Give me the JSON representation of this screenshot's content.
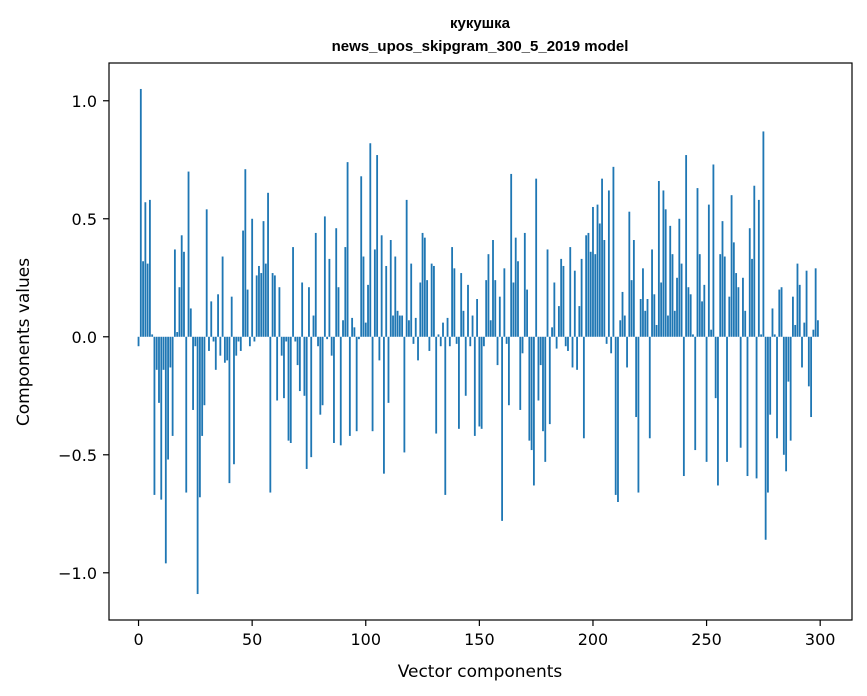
{
  "chart_data": {
    "type": "bar",
    "title": "кукушка",
    "subtitle": "news_upos_skipgram_300_5_2019 model",
    "xlabel": "Vector components",
    "ylabel": "Components values",
    "xlim": [
      -13,
      314
    ],
    "ylim": [
      -1.2,
      1.16
    ],
    "x_ticks": [
      0,
      50,
      100,
      150,
      200,
      250,
      300
    ],
    "x_tick_labels": [
      "0",
      "50",
      "100",
      "150",
      "200",
      "250",
      "300"
    ],
    "y_ticks": [
      -1.0,
      -0.5,
      0.0,
      0.5,
      1.0
    ],
    "y_tick_labels": [
      "−1.0",
      "−0.5",
      "0.0",
      "0.5",
      "1.0"
    ],
    "grid": false,
    "bar_color": "#1f77b4",
    "x": [
      0,
      1,
      2,
      3,
      4,
      5,
      6,
      7,
      8,
      9,
      10,
      11,
      12,
      13,
      14,
      15,
      16,
      17,
      18,
      19,
      20,
      21,
      22,
      23,
      24,
      25,
      26,
      27,
      28,
      29,
      30,
      31,
      32,
      33,
      34,
      35,
      36,
      37,
      38,
      39,
      40,
      41,
      42,
      43,
      44,
      45,
      46,
      47,
      48,
      49,
      50,
      51,
      52,
      53,
      54,
      55,
      56,
      57,
      58,
      59,
      60,
      61,
      62,
      63,
      64,
      65,
      66,
      67,
      68,
      69,
      70,
      71,
      72,
      73,
      74,
      75,
      76,
      77,
      78,
      79,
      80,
      81,
      82,
      83,
      84,
      85,
      86,
      87,
      88,
      89,
      90,
      91,
      92,
      93,
      94,
      95,
      96,
      97,
      98,
      99,
      100,
      101,
      102,
      103,
      104,
      105,
      106,
      107,
      108,
      109,
      110,
      111,
      112,
      113,
      114,
      115,
      116,
      117,
      118,
      119,
      120,
      121,
      122,
      123,
      124,
      125,
      126,
      127,
      128,
      129,
      130,
      131,
      132,
      133,
      134,
      135,
      136,
      137,
      138,
      139,
      140,
      141,
      142,
      143,
      144,
      145,
      146,
      147,
      148,
      149,
      150,
      151,
      152,
      153,
      154,
      155,
      156,
      157,
      158,
      159,
      160,
      161,
      162,
      163,
      164,
      165,
      166,
      167,
      168,
      169,
      170,
      171,
      172,
      173,
      174,
      175,
      176,
      177,
      178,
      179,
      180,
      181,
      182,
      183,
      184,
      185,
      186,
      187,
      188,
      189,
      190,
      191,
      192,
      193,
      194,
      195,
      196,
      197,
      198,
      199,
      200,
      201,
      202,
      203,
      204,
      205,
      206,
      207,
      208,
      209,
      210,
      211,
      212,
      213,
      214,
      215,
      216,
      217,
      218,
      219,
      220,
      221,
      222,
      223,
      224,
      225,
      226,
      227,
      228,
      229,
      230,
      231,
      232,
      233,
      234,
      235,
      236,
      237,
      238,
      239,
      240,
      241,
      242,
      243,
      244,
      245,
      246,
      247,
      248,
      249,
      250,
      251,
      252,
      253,
      254,
      255,
      256,
      257,
      258,
      259,
      260,
      261,
      262,
      263,
      264,
      265,
      266,
      267,
      268,
      269,
      270,
      271,
      272,
      273,
      274,
      275,
      276,
      277,
      278,
      279,
      280,
      281,
      282,
      283,
      284,
      285,
      286,
      287,
      288,
      289,
      290,
      291,
      292,
      293,
      294,
      295,
      296,
      297,
      298,
      299
    ],
    "values": [
      -0.04,
      1.05,
      0.32,
      0.57,
      0.31,
      0.58,
      0.01,
      -0.67,
      -0.14,
      -0.28,
      -0.69,
      -0.14,
      -0.96,
      -0.52,
      -0.13,
      -0.42,
      0.37,
      0.02,
      0.21,
      0.43,
      0.36,
      -0.66,
      0.7,
      0.12,
      -0.31,
      -0.04,
      -1.09,
      -0.68,
      -0.42,
      -0.29,
      0.54,
      -0.06,
      0.15,
      -0.02,
      -0.14,
      0.18,
      -0.08,
      0.34,
      -0.11,
      -0.1,
      -0.62,
      0.17,
      -0.54,
      -0.08,
      -0.02,
      -0.06,
      0.45,
      0.71,
      0.2,
      -0.04,
      0.5,
      -0.02,
      0.26,
      0.3,
      0.27,
      0.49,
      0.31,
      0.61,
      -0.66,
      0.27,
      0.26,
      -0.27,
      0.21,
      -0.08,
      -0.26,
      -0.02,
      -0.44,
      -0.45,
      0.38,
      -0.02,
      -0.12,
      -0.23,
      0.23,
      -0.25,
      -0.56,
      0.21,
      -0.51,
      0.09,
      0.44,
      -0.04,
      -0.33,
      -0.29,
      0.51,
      -0.01,
      0.33,
      -0.08,
      -0.45,
      0.46,
      0.21,
      -0.46,
      0.07,
      0.38,
      0.74,
      -0.42,
      0.08,
      0.04,
      -0.4,
      -0.01,
      0.68,
      0.34,
      0.06,
      0.22,
      0.82,
      -0.4,
      0.37,
      0.77,
      -0.1,
      0.43,
      -0.58,
      0.3,
      -0.28,
      0.41,
      0.09,
      0.34,
      0.11,
      0.09,
      0.09,
      -0.49,
      0.58,
      0.07,
      0.31,
      -0.03,
      0.08,
      -0.1,
      0.23,
      0.44,
      0.42,
      0.24,
      -0.06,
      0.31,
      0.3,
      -0.41,
      0.01,
      -0.04,
      0.06,
      -0.67,
      0.08,
      -0.04,
      0.38,
      0.29,
      -0.03,
      -0.39,
      0.27,
      0.11,
      -0.25,
      0.22,
      -0.04,
      0.09,
      -0.42,
      0.16,
      -0.38,
      -0.39,
      -0.04,
      0.24,
      0.35,
      0.07,
      0.41,
      0.24,
      -0.12,
      0.17,
      -0.78,
      0.29,
      -0.03,
      -0.29,
      0.69,
      0.23,
      0.42,
      0.32,
      -0.31,
      -0.07,
      0.44,
      0.2,
      -0.44,
      -0.48,
      -0.63,
      0.67,
      -0.27,
      -0.12,
      -0.4,
      -0.53,
      0.37,
      -0.37,
      0.04,
      0.23,
      -0.05,
      0.13,
      0.33,
      0.3,
      -0.04,
      -0.06,
      0.38,
      -0.13,
      0.28,
      -0.14,
      0.13,
      0.33,
      -0.43,
      0.43,
      0.44,
      0.36,
      0.55,
      0.35,
      0.56,
      0.48,
      0.67,
      0.41,
      -0.03,
      0.62,
      -0.07,
      0.72,
      -0.67,
      -0.7,
      0.07,
      0.19,
      0.09,
      -0.13,
      0.53,
      0.24,
      0.41,
      -0.34,
      -0.66,
      0.16,
      0.29,
      0.11,
      0.16,
      -0.43,
      0.37,
      0.18,
      0.05,
      0.66,
      0.23,
      0.62,
      0.54,
      0.09,
      0.47,
      0.35,
      0.11,
      0.25,
      0.5,
      0.31,
      -0.59,
      0.77,
      0.21,
      0.18,
      0.01,
      -0.48,
      0.63,
      0.35,
      0.15,
      0.22,
      -0.53,
      0.56,
      0.03,
      0.73,
      -0.26,
      -0.63,
      0.35,
      0.49,
      0.34,
      -0.53,
      0.17,
      0.6,
      0.4,
      0.27,
      0.21,
      -0.47,
      0.25,
      0.11,
      -0.59,
      0.46,
      0.33,
      0.64,
      -0.6,
      0.58,
      0.01,
      0.87,
      -0.86,
      -0.66,
      -0.33,
      0.12,
      0.01,
      -0.43,
      0.2,
      0.21,
      -0.5,
      -0.57,
      -0.19,
      -0.44,
      0.17,
      0.05,
      0.31,
      0.22,
      -0.13,
      0.06,
      0.28,
      -0.21,
      -0.34,
      0.03,
      0.29,
      0.07
    ]
  }
}
